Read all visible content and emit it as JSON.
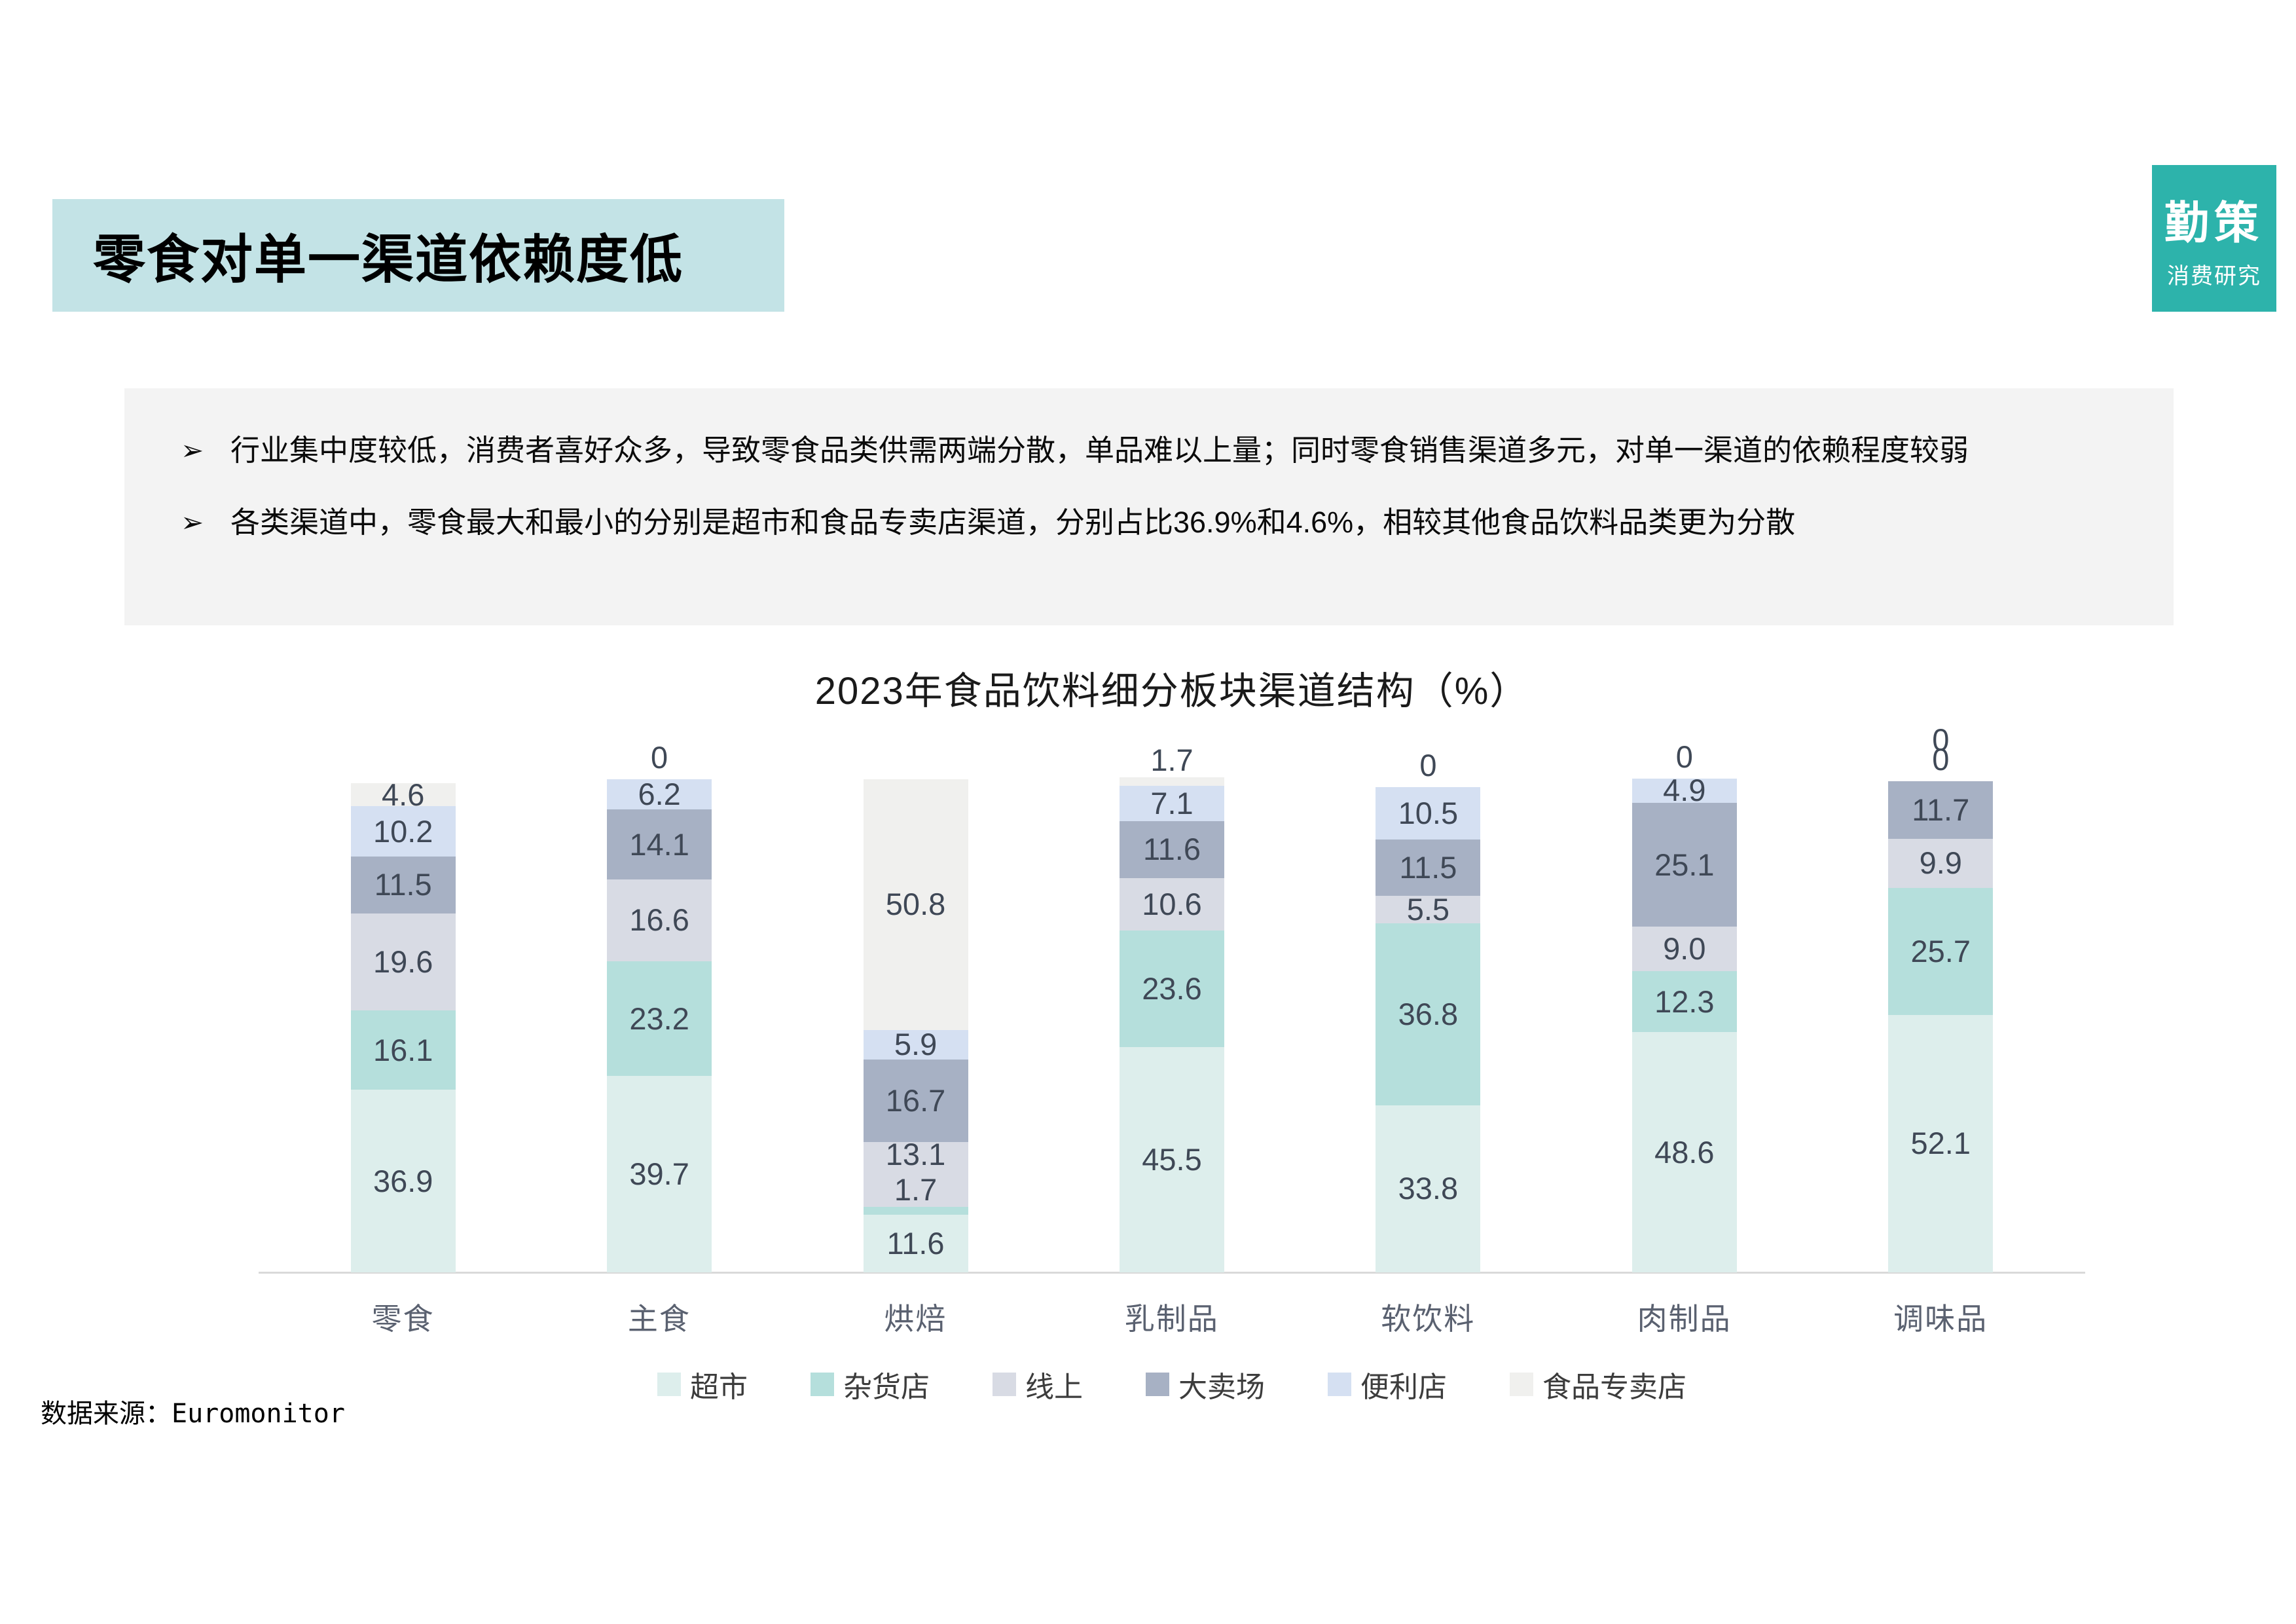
{
  "slide": {
    "title": "零食对单一渠道依赖度低",
    "logo": {
      "line1": "勤策",
      "line2": "消费研究"
    },
    "bullet_marker": "➢",
    "bullets": [
      "行业集中度较低，消费者喜好众多，导致零食品类供需两端分散，单品难以上量；同时零食销售渠道多元，对单一渠道的依赖程度较弱",
      "各类渠道中，零食最大和最小的分别是超市和食品专卖店渠道，分别占比36.9%和4.6%，相较其他食品饮料品类更为分散"
    ],
    "source": "数据来源：Euromonitor"
  },
  "chart_data": {
    "type": "bar",
    "stacked": true,
    "title": "2023年食品饮料细分板块渠道结构（%）",
    "xlabel": "",
    "ylabel": "",
    "ylim": [
      0,
      100
    ],
    "grid": false,
    "legend_position": "bottom",
    "value_labels": true,
    "categories": [
      "零食",
      "主食",
      "烘焙",
      "乳制品",
      "软饮料",
      "肉制品",
      "调味品"
    ],
    "series": [
      {
        "name": "超市",
        "color": "#ddeeec",
        "values": [
          36.9,
          39.7,
          11.6,
          45.5,
          33.8,
          48.6,
          52.1
        ],
        "labels": [
          "36.9",
          "39.7",
          "11.6",
          "45.5",
          "33.8",
          "48.6",
          "52.1"
        ]
      },
      {
        "name": "杂货店",
        "color": "#b5dfdc",
        "values": [
          16.1,
          23.2,
          1.7,
          23.6,
          36.8,
          12.3,
          25.7
        ],
        "labels": [
          "16.1",
          "23.2",
          "1.7",
          "23.6",
          "36.8",
          "12.3",
          "25.7"
        ]
      },
      {
        "name": "线上",
        "color": "#d8dbe4",
        "values": [
          19.6,
          16.6,
          13.1,
          10.6,
          5.5,
          9.0,
          9.9
        ],
        "labels": [
          "19.6",
          "16.6",
          "13.1",
          "10.6",
          "5.5",
          "9.0",
          "9.9"
        ]
      },
      {
        "name": "大卖场",
        "color": "#a7b1c4",
        "values": [
          11.5,
          14.1,
          16.7,
          11.6,
          11.5,
          25.1,
          11.7
        ],
        "labels": [
          "11.5",
          "14.1",
          "16.7",
          "11.6",
          "11.5",
          "25.1",
          "11.7"
        ]
      },
      {
        "name": "便利店",
        "color": "#d5e0f2",
        "values": [
          10.2,
          6.2,
          5.9,
          7.1,
          10.5,
          4.9,
          0
        ],
        "labels": [
          "10.2",
          "6.2",
          "5.9",
          "7.1",
          "10.5",
          "4.9",
          "0"
        ]
      },
      {
        "name": "食品专卖店",
        "color": "#f0f0ee",
        "values": [
          4.6,
          0,
          50.8,
          1.7,
          0,
          0,
          0
        ],
        "labels": [
          "4.6",
          "0",
          "50.8",
          "1.7",
          "0",
          "0",
          "0"
        ]
      }
    ],
    "axis_color": "#d9d9d9"
  }
}
